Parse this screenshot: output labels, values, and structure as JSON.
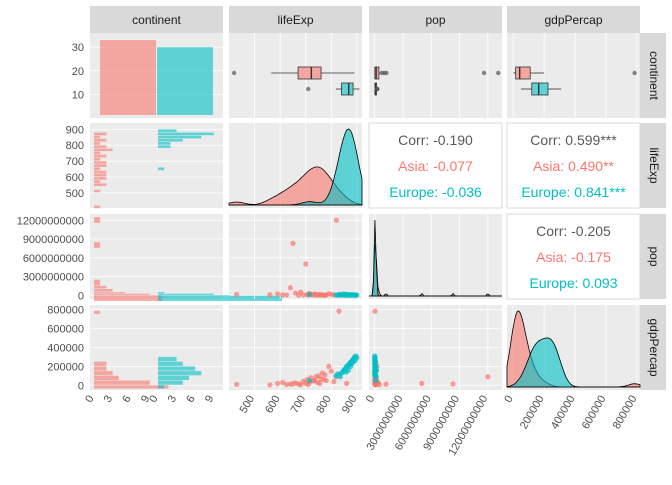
{
  "variables": [
    "continent",
    "lifeExp",
    "pop",
    "gdpPercap"
  ],
  "colors": {
    "Asia": "#F8766D",
    "Europe": "#00BFC4",
    "panel_bg": "#EBEBEB",
    "strip_bg": "#D9D9D9",
    "grid": "#FFFFFF",
    "text": "#4D4D4D",
    "corr_text": "#595959"
  },
  "ticks": {
    "continent_y": [
      "10",
      "20",
      "30"
    ],
    "lifeExp": [
      "500",
      "600",
      "700",
      "800",
      "900"
    ],
    "pop": [
      "0",
      "3000000000",
      "6000000000",
      "9000000000",
      "12000000000"
    ],
    "pop_x": [
      "0",
      "3000000000",
      "6000000000",
      "9000000000",
      "12000000000"
    ],
    "gdp": [
      "0",
      "200000",
      "400000",
      "600000",
      "800000"
    ],
    "count_x": [
      "0",
      "3",
      "6",
      "9",
      "0",
      "3",
      "6",
      "9"
    ]
  },
  "correlations": {
    "lifeExp_pop": {
      "total": "Corr: -0.190",
      "Asia": "Asia: -0.077",
      "Europe": "Europe: -0.036"
    },
    "lifeExp_gdpPercap": {
      "total": "Corr: 0.599***",
      "Asia": "Asia: 0.490**",
      "Europe": "Europe: 0.841***"
    },
    "pop_gdpPercap": {
      "total": "Corr: -0.205",
      "Asia": "Asia: -0.175",
      "Europe": "Europe: 0.093"
    }
  },
  "chart_data": {
    "type": "scatter",
    "groups": [
      "Asia",
      "Europe"
    ],
    "continent_counts": {
      "Asia": 33,
      "Europe": 30
    },
    "boxplots": {
      "lifeExp": {
        "Asia": {
          "min": 565,
          "q1": 670,
          "median": 722,
          "q3": 760,
          "max": 890,
          "outliers": [
            420
          ]
        },
        "Europe": {
          "min": 818,
          "q1": 840,
          "median": 868,
          "q3": 885,
          "max": 910,
          "outliers": [
            710
          ]
        }
      },
      "pop": {
        "Asia": {
          "min": 0,
          "q1": 20000000,
          "median": 160000000,
          "q3": 450000000,
          "max": 600000000,
          "outliers": [
            750000000,
            1000000000,
            1250000000,
            11600000000,
            13100000000
          ]
        },
        "Europe": {
          "min": 0,
          "q1": 30000000,
          "median": 90000000,
          "q3": 200000000,
          "max": 220000000,
          "outliers": [
            230000000,
            260000000,
            290000000
          ]
        }
      },
      "gdpPercap": {
        "Asia": {
          "min": 0,
          "q1": 16000,
          "median": 42000,
          "q3": 110000,
          "max": 200000,
          "outliers": [
            785000
          ]
        },
        "Europe": {
          "min": 50000,
          "q1": 120000,
          "median": 165000,
          "q3": 225000,
          "max": 310000,
          "outliers": []
        }
      }
    },
    "scatter": {
      "Asia": [
        {
          "lifeExp": 430,
          "pop": 120000000,
          "gdpPercap": 10000
        },
        {
          "lifeExp": 560,
          "pop": 80000000,
          "gdpPercap": 5000
        },
        {
          "lifeExp": 590,
          "pop": 200000000,
          "gdpPercap": 20000
        },
        {
          "lifeExp": 610,
          "pop": 60000000,
          "gdpPercap": 30000
        },
        {
          "lifeExp": 625,
          "pop": 50000000,
          "gdpPercap": 8000
        },
        {
          "lifeExp": 640,
          "pop": 1200000000,
          "gdpPercap": 12000
        },
        {
          "lifeExp": 650,
          "pop": 8300000000,
          "gdpPercap": 15000
        },
        {
          "lifeExp": 660,
          "pop": 350000000,
          "gdpPercap": 25000
        },
        {
          "lifeExp": 672,
          "pop": 10000000,
          "gdpPercap": 14000
        },
        {
          "lifeExp": 680,
          "pop": 500000000,
          "gdpPercap": 5000
        },
        {
          "lifeExp": 690,
          "pop": 60000000,
          "gdpPercap": 40000
        },
        {
          "lifeExp": 700,
          "pop": 5000000000,
          "gdpPercap": 20000
        },
        {
          "lifeExp": 705,
          "pop": 100000000,
          "gdpPercap": 60000
        },
        {
          "lifeExp": 710,
          "pop": 80000000,
          "gdpPercap": 10000
        },
        {
          "lifeExp": 715,
          "pop": 300000000,
          "gdpPercap": 35000
        },
        {
          "lifeExp": 720,
          "pop": 150000000,
          "gdpPercap": 80000
        },
        {
          "lifeExp": 728,
          "pop": 40000000,
          "gdpPercap": 45000
        },
        {
          "lifeExp": 735,
          "pop": 200000000,
          "gdpPercap": 50000
        },
        {
          "lifeExp": 740,
          "pop": 20000000,
          "gdpPercap": 90000
        },
        {
          "lifeExp": 745,
          "pop": 70000000,
          "gdpPercap": 30000
        },
        {
          "lifeExp": 750,
          "pop": 120000000,
          "gdpPercap": 100000
        },
        {
          "lifeExp": 755,
          "pop": 30000000,
          "gdpPercap": 20000
        },
        {
          "lifeExp": 760,
          "pop": 90000000,
          "gdpPercap": 70000
        },
        {
          "lifeExp": 765,
          "pop": 50000000,
          "gdpPercap": 130000
        },
        {
          "lifeExp": 770,
          "pop": 20000000,
          "gdpPercap": 60000
        },
        {
          "lifeExp": 775,
          "pop": 8000000,
          "gdpPercap": 110000
        },
        {
          "lifeExp": 780,
          "pop": 25000000,
          "gdpPercap": 50000
        },
        {
          "lifeExp": 790,
          "pop": 230000000,
          "gdpPercap": 200000
        },
        {
          "lifeExp": 800,
          "pop": 150000000,
          "gdpPercap": 150000
        },
        {
          "lifeExp": 810,
          "pop": 50000000,
          "gdpPercap": 40000
        },
        {
          "lifeExp": 820,
          "pop": 12000000000,
          "gdpPercap": 90000
        },
        {
          "lifeExp": 830,
          "pop": 40000000,
          "gdpPercap": 785000
        },
        {
          "lifeExp": 860,
          "pop": 100000000,
          "gdpPercap": 20000
        }
      ],
      "Europe": [
        {
          "lifeExp": 715,
          "pop": 100000000,
          "gdpPercap": 50000
        },
        {
          "lifeExp": 818,
          "pop": 50000000,
          "gdpPercap": 100000
        },
        {
          "lifeExp": 825,
          "pop": 20000000,
          "gdpPercap": 120000
        },
        {
          "lifeExp": 830,
          "pop": 80000000,
          "gdpPercap": 110000
        },
        {
          "lifeExp": 835,
          "pop": 150000000,
          "gdpPercap": 90000
        },
        {
          "lifeExp": 840,
          "pop": 10000000,
          "gdpPercap": 130000
        },
        {
          "lifeExp": 845,
          "pop": 60000000,
          "gdpPercap": 140000
        },
        {
          "lifeExp": 848,
          "pop": 200000000,
          "gdpPercap": 160000
        },
        {
          "lifeExp": 850,
          "pop": 40000000,
          "gdpPercap": 150000
        },
        {
          "lifeExp": 853,
          "pop": 30000000,
          "gdpPercap": 170000
        },
        {
          "lifeExp": 856,
          "pop": 90000000,
          "gdpPercap": 180000
        },
        {
          "lifeExp": 858,
          "pop": 5000000,
          "gdpPercap": 140000
        },
        {
          "lifeExp": 860,
          "pop": 120000000,
          "gdpPercap": 200000
        },
        {
          "lifeExp": 862,
          "pop": 15000000,
          "gdpPercap": 190000
        },
        {
          "lifeExp": 865,
          "pop": 70000000,
          "gdpPercap": 210000
        },
        {
          "lifeExp": 867,
          "pop": 25000000,
          "gdpPercap": 160000
        },
        {
          "lifeExp": 870,
          "pop": 50000000,
          "gdpPercap": 220000
        },
        {
          "lifeExp": 872,
          "pop": 8000000,
          "gdpPercap": 230000
        },
        {
          "lifeExp": 874,
          "pop": 100000000,
          "gdpPercap": 240000
        },
        {
          "lifeExp": 876,
          "pop": 35000000,
          "gdpPercap": 200000
        },
        {
          "lifeExp": 878,
          "pop": 60000000,
          "gdpPercap": 250000
        },
        {
          "lifeExp": 880,
          "pop": 20000000,
          "gdpPercap": 230000
        },
        {
          "lifeExp": 882,
          "pop": 10000000,
          "gdpPercap": 260000
        },
        {
          "lifeExp": 884,
          "pop": 45000000,
          "gdpPercap": 270000
        },
        {
          "lifeExp": 886,
          "pop": 80000000,
          "gdpPercap": 250000
        },
        {
          "lifeExp": 888,
          "pop": 15000000,
          "gdpPercap": 280000
        },
        {
          "lifeExp": 890,
          "pop": 5000000,
          "gdpPercap": 300000
        },
        {
          "lifeExp": 893,
          "pop": 30000000,
          "gdpPercap": 260000
        },
        {
          "lifeExp": 896,
          "pop": 12000000,
          "gdpPercap": 310000
        },
        {
          "lifeExp": 900,
          "pop": 40000000,
          "gdpPercap": 290000
        }
      ]
    },
    "histograms": {
      "lifeExp": {
        "bins": [
          900,
          880,
          860,
          840,
          820,
          800,
          780,
          760,
          740,
          720,
          700,
          680,
          660,
          640,
          620,
          600,
          580,
          560,
          540,
          520,
          500,
          480,
          460,
          440,
          420
        ],
        "Asia": [
          0,
          2,
          1,
          2,
          1,
          2,
          3,
          1,
          2,
          1,
          2,
          2,
          1,
          2,
          2,
          2,
          1,
          2,
          0,
          1,
          0,
          0,
          0,
          0,
          1
        ],
        "Europe": [
          3,
          9,
          7,
          4,
          2,
          2,
          0,
          0,
          0,
          0,
          0,
          0,
          1,
          0,
          0,
          0,
          0,
          0,
          0,
          0,
          0,
          0,
          0,
          0,
          0
        ]
      },
      "pop": {
        "bins": [
          12500000000,
          11500000000,
          10500000000,
          9500000000,
          8500000000,
          7500000000,
          6500000000,
          5500000000,
          4500000000,
          3500000000,
          2500000000,
          1500000000,
          1000000000,
          500000000,
          250000000,
          0
        ],
        "Asia": [
          1,
          0,
          0,
          0,
          1,
          0,
          0,
          0,
          0,
          0,
          1,
          2,
          3,
          5,
          9,
          11
        ],
        "Europe": [
          0,
          0,
          0,
          0,
          0,
          0,
          0,
          0,
          0,
          0,
          0,
          0,
          0,
          1,
          9,
          20
        ]
      },
      "gdpPercap": {
        "bins": [
          790000,
          750000,
          700000,
          650000,
          600000,
          550000,
          500000,
          450000,
          400000,
          350000,
          300000,
          250000,
          200000,
          150000,
          100000,
          50000,
          0
        ],
        "Asia": [
          1,
          0,
          0,
          0,
          0,
          0,
          0,
          0,
          0,
          0,
          0,
          2,
          2,
          3,
          4,
          9,
          12
        ],
        "Europe": [
          0,
          0,
          0,
          0,
          0,
          0,
          0,
          0,
          0,
          0,
          3,
          4,
          6,
          7,
          5,
          4,
          1
        ]
      }
    }
  }
}
